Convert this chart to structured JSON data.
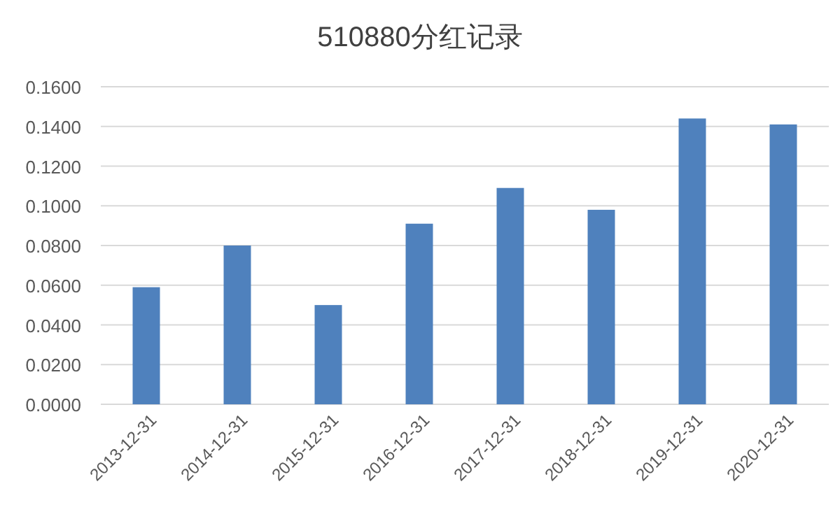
{
  "chart_data": {
    "type": "bar",
    "title": "510880分红记录",
    "categories": [
      "2013-12-31",
      "2014-12-31",
      "2015-12-31",
      "2016-12-31",
      "2017-12-31",
      "2018-12-31",
      "2019-12-31",
      "2020-12-31"
    ],
    "values": [
      0.059,
      0.08,
      0.05,
      0.091,
      0.109,
      0.098,
      0.144,
      0.141
    ],
    "color": "#4f81bd",
    "ylim": [
      0,
      0.16
    ],
    "yticks": [
      {
        "value": 0,
        "label": "0.0000"
      },
      {
        "value": 0.02,
        "label": "0.0200"
      },
      {
        "value": 0.04,
        "label": "0.0400"
      },
      {
        "value": 0.06,
        "label": "0.0600"
      },
      {
        "value": 0.08,
        "label": "0.0800"
      },
      {
        "value": 0.1,
        "label": "0.1000"
      },
      {
        "value": 0.12,
        "label": "0.1200"
      },
      {
        "value": 0.14,
        "label": "0.1400"
      },
      {
        "value": 0.16,
        "label": "0.1600"
      }
    ],
    "grid": "y"
  }
}
